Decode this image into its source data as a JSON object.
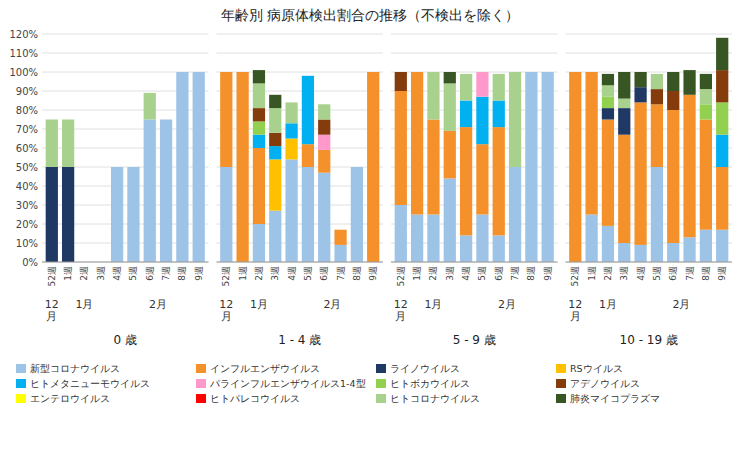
{
  "title": "年齢別 病原体検出割合の推移（不検出を除く）",
  "chart_data": [
    {
      "type": "bar",
      "stacked": true,
      "title": "0 歳",
      "grid": true,
      "categories": [
        "52週",
        "1週",
        "2週",
        "3週",
        "4週",
        "5週",
        "6週",
        "7週",
        "8週",
        "9週"
      ],
      "annotations": [
        {
          "text": "12\n月",
          "x": 0
        },
        {
          "text": "1月",
          "x": 2
        },
        {
          "text": "2月",
          "x": 6.5
        }
      ],
      "ylim": [
        0,
        120
      ],
      "yticks": [
        {
          "value": 0,
          "label": "0%"
        },
        {
          "value": 10,
          "label": "10%"
        },
        {
          "value": 20,
          "label": "20%"
        },
        {
          "value": 30,
          "label": "30%"
        },
        {
          "value": 40,
          "label": "40%"
        },
        {
          "value": 50,
          "label": "50%"
        },
        {
          "value": 60,
          "label": "60%"
        },
        {
          "value": 70,
          "label": "70%"
        },
        {
          "value": 80,
          "label": "80%"
        },
        {
          "value": 90,
          "label": "90%"
        },
        {
          "value": 100,
          "label": "100%"
        },
        {
          "value": 110,
          "label": "110%"
        },
        {
          "value": 120,
          "label": "120%"
        }
      ],
      "series": [
        {
          "name": "新型コロナウイルス",
          "color": "#9dc3e6",
          "values": [
            0,
            0,
            0,
            0,
            50,
            50,
            75,
            75,
            100,
            100
          ]
        },
        {
          "name": "インフルエンザウイルス",
          "color": "#f4912b",
          "values": [
            0,
            0,
            0,
            0,
            0,
            0,
            0,
            0,
            0,
            0
          ]
        },
        {
          "name": "ライノウイルス",
          "color": "#203864",
          "values": [
            50,
            50,
            0,
            0,
            0,
            0,
            0,
            0,
            0,
            0
          ]
        },
        {
          "name": "RSウイルス",
          "color": "#ffc000",
          "values": [
            0,
            0,
            0,
            0,
            0,
            0,
            0,
            0,
            0,
            0
          ]
        },
        {
          "name": "ヒトメタニューモウイルス",
          "color": "#00b0f0",
          "values": [
            0,
            0,
            0,
            0,
            0,
            0,
            0,
            0,
            0,
            0
          ]
        },
        {
          "name": "パラインフルエンザウイルス1-4型",
          "color": "#ff99cc",
          "values": [
            0,
            0,
            0,
            0,
            0,
            0,
            0,
            0,
            0,
            0
          ]
        },
        {
          "name": "ヒトボカウイルス",
          "color": "#92d050",
          "values": [
            0,
            0,
            0,
            0,
            0,
            0,
            0,
            0,
            0,
            0
          ]
        },
        {
          "name": "アデノウイルス",
          "color": "#843c0c",
          "values": [
            0,
            0,
            0,
            0,
            0,
            0,
            0,
            0,
            0,
            0
          ]
        },
        {
          "name": "エンテロウイルス",
          "color": "#ffff00",
          "values": [
            0,
            0,
            0,
            0,
            0,
            0,
            0,
            0,
            0,
            0
          ]
        },
        {
          "name": "ヒトパレコウイルス",
          "color": "#ff0000",
          "values": [
            0,
            0,
            0,
            0,
            0,
            0,
            0,
            0,
            0,
            0
          ]
        },
        {
          "name": "ヒトコロナウイルス",
          "color": "#a9d18e",
          "values": [
            25,
            25,
            0,
            0,
            0,
            0,
            14,
            0,
            0,
            0
          ]
        },
        {
          "name": "肺炎マイコプラズマ",
          "color": "#375623",
          "values": [
            0,
            0,
            0,
            0,
            0,
            0,
            0,
            0,
            0,
            0
          ]
        }
      ]
    },
    {
      "type": "bar",
      "stacked": true,
      "title": "1 - 4 歳",
      "grid": true,
      "tick_labels": "x",
      "categories": [
        "52週",
        "1週",
        "2週",
        "3週",
        "4週",
        "5週",
        "6週",
        "7週",
        "8週",
        "9週"
      ],
      "annotations": [
        {
          "text": "12\n月",
          "x": 0
        },
        {
          "text": "1月",
          "x": 2
        },
        {
          "text": "2月",
          "x": 6.5
        }
      ],
      "ylim": [
        0,
        120
      ],
      "yticks": [
        {
          "value": 0,
          "label": "0%"
        },
        {
          "value": 10,
          "label": "10%"
        },
        {
          "value": 20,
          "label": "20%"
        },
        {
          "value": 30,
          "label": "30%"
        },
        {
          "value": 40,
          "label": "40%"
        },
        {
          "value": 50,
          "label": "50%"
        },
        {
          "value": 60,
          "label": "60%"
        },
        {
          "value": 70,
          "label": "70%"
        },
        {
          "value": 80,
          "label": "80%"
        },
        {
          "value": 90,
          "label": "90%"
        },
        {
          "value": 100,
          "label": "100%"
        },
        {
          "value": 110,
          "label": "110%"
        },
        {
          "value": 120,
          "label": "120%"
        }
      ],
      "series": [
        {
          "name": "新型コロナウイルス",
          "color": "#9dc3e6",
          "values": [
            50,
            0,
            20,
            27,
            54,
            50,
            47,
            9,
            50,
            0
          ]
        },
        {
          "name": "インフルエンザウイルス",
          "color": "#f4912b",
          "values": [
            50,
            100,
            40,
            0,
            0,
            12,
            12,
            8,
            0,
            100
          ]
        },
        {
          "name": "ライノウイルス",
          "color": "#203864",
          "values": [
            0,
            0,
            0,
            0,
            0,
            0,
            0,
            0,
            0,
            0
          ]
        },
        {
          "name": "RSウイルス",
          "color": "#ffc000",
          "values": [
            0,
            0,
            0,
            27,
            11,
            0,
            0,
            0,
            0,
            0
          ]
        },
        {
          "name": "ヒトメタニューモウイルス",
          "color": "#00b0f0",
          "values": [
            0,
            0,
            7,
            7,
            8,
            36,
            0,
            0,
            0,
            0
          ]
        },
        {
          "name": "パラインフルエンザウイルス1-4型",
          "color": "#ff99cc",
          "values": [
            0,
            0,
            0,
            0,
            0,
            0,
            8,
            0,
            0,
            0
          ]
        },
        {
          "name": "ヒトボカウイルス",
          "color": "#92d050",
          "values": [
            0,
            0,
            7,
            0,
            0,
            0,
            0,
            0,
            0,
            0
          ]
        },
        {
          "name": "アデノウイルス",
          "color": "#843c0c",
          "values": [
            0,
            0,
            7,
            7,
            0,
            0,
            8,
            0,
            0,
            0
          ]
        },
        {
          "name": "エンテロウイルス",
          "color": "#ffff00",
          "values": [
            0,
            0,
            0,
            0,
            0,
            0,
            0,
            0,
            0,
            0
          ]
        },
        {
          "name": "ヒトパレコウイルス",
          "color": "#ff0000",
          "values": [
            0,
            0,
            0,
            0,
            0,
            0,
            0,
            0,
            0,
            0
          ]
        },
        {
          "name": "ヒトコロナウイルス",
          "color": "#a9d18e",
          "values": [
            0,
            0,
            13,
            13,
            11,
            0,
            8,
            0,
            0,
            0
          ]
        },
        {
          "name": "肺炎マイコプラズマ",
          "color": "#375623",
          "values": [
            0,
            0,
            7,
            7,
            0,
            0,
            0,
            0,
            0,
            0
          ]
        }
      ]
    },
    {
      "type": "bar",
      "stacked": true,
      "title": "5 - 9 歳",
      "grid": true,
      "tick_labels": "x",
      "categories": [
        "52週",
        "1週",
        "2週",
        "3週",
        "4週",
        "5週",
        "6週",
        "7週",
        "8週",
        "9週"
      ],
      "annotations": [
        {
          "text": "12\n月",
          "x": 0
        },
        {
          "text": "1月",
          "x": 2
        },
        {
          "text": "2月",
          "x": 6.5
        }
      ],
      "ylim": [
        0,
        120
      ],
      "yticks": [
        {
          "value": 0,
          "label": "0%"
        },
        {
          "value": 10,
          "label": "10%"
        },
        {
          "value": 20,
          "label": "20%"
        },
        {
          "value": 30,
          "label": "30%"
        },
        {
          "value": 40,
          "label": "40%"
        },
        {
          "value": 50,
          "label": "50%"
        },
        {
          "value": 60,
          "label": "60%"
        },
        {
          "value": 70,
          "label": "70%"
        },
        {
          "value": 80,
          "label": "80%"
        },
        {
          "value": 90,
          "label": "90%"
        },
        {
          "value": 100,
          "label": "100%"
        },
        {
          "value": 110,
          "label": "110%"
        },
        {
          "value": 120,
          "label": "120%"
        }
      ],
      "series": [
        {
          "name": "新型コロナウイルス",
          "color": "#9dc3e6",
          "values": [
            30,
            25,
            25,
            44,
            14,
            25,
            14,
            50,
            100,
            100
          ]
        },
        {
          "name": "インフルエンザウイルス",
          "color": "#f4912b",
          "values": [
            60,
            75,
            50,
            25,
            57,
            37,
            57,
            0,
            0,
            0
          ]
        },
        {
          "name": "ライノウイルス",
          "color": "#203864",
          "values": [
            0,
            0,
            0,
            0,
            0,
            0,
            0,
            0,
            0,
            0
          ]
        },
        {
          "name": "RSウイルス",
          "color": "#ffc000",
          "values": [
            0,
            0,
            0,
            0,
            0,
            0,
            0,
            0,
            0,
            0
          ]
        },
        {
          "name": "ヒトメタニューモウイルス",
          "color": "#00b0f0",
          "values": [
            0,
            0,
            0,
            0,
            14,
            25,
            14,
            0,
            0,
            0
          ]
        },
        {
          "name": "パラインフルエンザウイルス1-4型",
          "color": "#ff99cc",
          "values": [
            0,
            0,
            0,
            0,
            0,
            13,
            0,
            0,
            0,
            0
          ]
        },
        {
          "name": "ヒトボカウイルス",
          "color": "#92d050",
          "values": [
            0,
            0,
            0,
            0,
            0,
            0,
            0,
            0,
            0,
            0
          ]
        },
        {
          "name": "アデノウイルス",
          "color": "#843c0c",
          "values": [
            10,
            0,
            0,
            0,
            0,
            0,
            0,
            0,
            0,
            0
          ]
        },
        {
          "name": "エンテロウイルス",
          "color": "#ffff00",
          "values": [
            0,
            0,
            0,
            0,
            0,
            0,
            0,
            0,
            0,
            0
          ]
        },
        {
          "name": "ヒトパレコウイルス",
          "color": "#ff0000",
          "values": [
            0,
            0,
            0,
            0,
            0,
            0,
            0,
            0,
            0,
            0
          ]
        },
        {
          "name": "ヒトコロナウイルス",
          "color": "#a9d18e",
          "values": [
            0,
            0,
            25,
            25,
            14,
            0,
            14,
            50,
            0,
            0
          ]
        },
        {
          "name": "肺炎マイコプラズマ",
          "color": "#375623",
          "values": [
            0,
            0,
            0,
            6,
            0,
            0,
            0,
            0,
            0,
            0
          ]
        }
      ]
    },
    {
      "type": "bar",
      "stacked": true,
      "title": "10 - 19 歳",
      "grid": true,
      "tick_labels": "x",
      "categories": [
        "52週",
        "1週",
        "2週",
        "3週",
        "4週",
        "5週",
        "6週",
        "7週",
        "8週",
        "9週"
      ],
      "annotations": [
        {
          "text": "12\n月",
          "x": 0
        },
        {
          "text": "1月",
          "x": 2
        },
        {
          "text": "2月",
          "x": 6.5
        }
      ],
      "ylim": [
        0,
        120
      ],
      "yticks": [
        {
          "value": 0,
          "label": "0%"
        },
        {
          "value": 10,
          "label": "10%"
        },
        {
          "value": 20,
          "label": "20%"
        },
        {
          "value": 30,
          "label": "30%"
        },
        {
          "value": 40,
          "label": "40%"
        },
        {
          "value": 50,
          "label": "50%"
        },
        {
          "value": 60,
          "label": "60%"
        },
        {
          "value": 70,
          "label": "70%"
        },
        {
          "value": 80,
          "label": "80%"
        },
        {
          "value": 90,
          "label": "90%"
        },
        {
          "value": 100,
          "label": "100%"
        },
        {
          "value": 110,
          "label": "110%"
        },
        {
          "value": 120,
          "label": "120%"
        }
      ],
      "series": [
        {
          "name": "新型コロナウイルス",
          "color": "#9dc3e6",
          "values": [
            0,
            25,
            19,
            10,
            9,
            50,
            10,
            13,
            17,
            17
          ]
        },
        {
          "name": "インフルエンザウイルス",
          "color": "#f4912b",
          "values": [
            100,
            75,
            56,
            57,
            75,
            33,
            70,
            75,
            58,
            33
          ]
        },
        {
          "name": "ライノウイルス",
          "color": "#203864",
          "values": [
            0,
            0,
            6,
            14,
            8,
            0,
            0,
            0,
            0,
            0
          ]
        },
        {
          "name": "RSウイルス",
          "color": "#ffc000",
          "values": [
            0,
            0,
            0,
            0,
            0,
            0,
            0,
            0,
            0,
            0
          ]
        },
        {
          "name": "ヒトメタニューモウイルス",
          "color": "#00b0f0",
          "values": [
            0,
            0,
            0,
            0,
            0,
            0,
            0,
            0,
            0,
            17
          ]
        },
        {
          "name": "パラインフルエンザウイルス1-4型",
          "color": "#ff99cc",
          "values": [
            0,
            0,
            0,
            0,
            0,
            0,
            0,
            0,
            0,
            0
          ]
        },
        {
          "name": "ヒトボカウイルス",
          "color": "#92d050",
          "values": [
            0,
            0,
            6,
            0,
            0,
            0,
            0,
            0,
            8,
            17
          ]
        },
        {
          "name": "アデノウイルス",
          "color": "#843c0c",
          "values": [
            0,
            0,
            0,
            0,
            0,
            8,
            10,
            0,
            0,
            17
          ]
        },
        {
          "name": "エンテロウイルス",
          "color": "#ffff00",
          "values": [
            0,
            0,
            0,
            0,
            0,
            0,
            0,
            0,
            0,
            0
          ]
        },
        {
          "name": "ヒトパレコウイルス",
          "color": "#ff0000",
          "values": [
            0,
            0,
            0,
            0,
            0,
            0,
            0,
            0,
            0,
            0
          ]
        },
        {
          "name": "ヒトコロナウイルス",
          "color": "#a9d18e",
          "values": [
            0,
            0,
            6,
            5,
            0,
            8,
            0,
            0,
            8,
            0
          ]
        },
        {
          "name": "肺炎マイコプラズマ",
          "color": "#375623",
          "values": [
            0,
            0,
            6,
            14,
            8,
            0,
            10,
            13,
            8,
            17
          ]
        }
      ]
    }
  ]
}
